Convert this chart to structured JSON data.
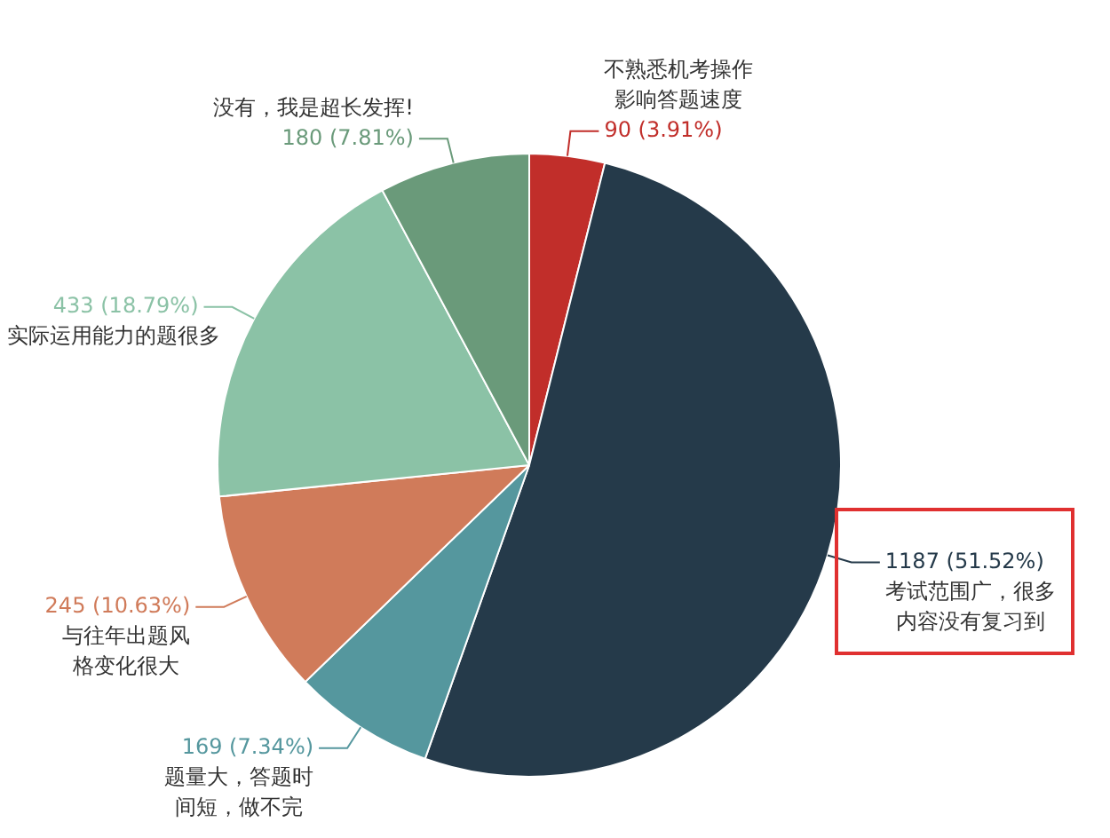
{
  "chart_data": {
    "type": "pie",
    "categories": [
      "不熟悉机考操作影响答题速度",
      "考试范围广，很多内容没有复习到",
      "题量大，答题时间短，做不完",
      "与往年出题风格变化很大",
      "实际运用能力的题很多",
      "没有，我是超长发挥!"
    ],
    "values": [
      90,
      1187,
      169,
      245,
      433,
      180
    ],
    "value_labels": [
      "90 (3.91%)",
      "1187 (51.52%)",
      "169 (7.34%)",
      "245 (10.63%)",
      "433 (18.79%)",
      "180 (7.81%)"
    ],
    "colors": [
      "#c12e2a",
      "#253a4a",
      "#55979e",
      "#d07b5a",
      "#8bc2a6",
      "#6a9a7a"
    ],
    "legend": false
  }
}
